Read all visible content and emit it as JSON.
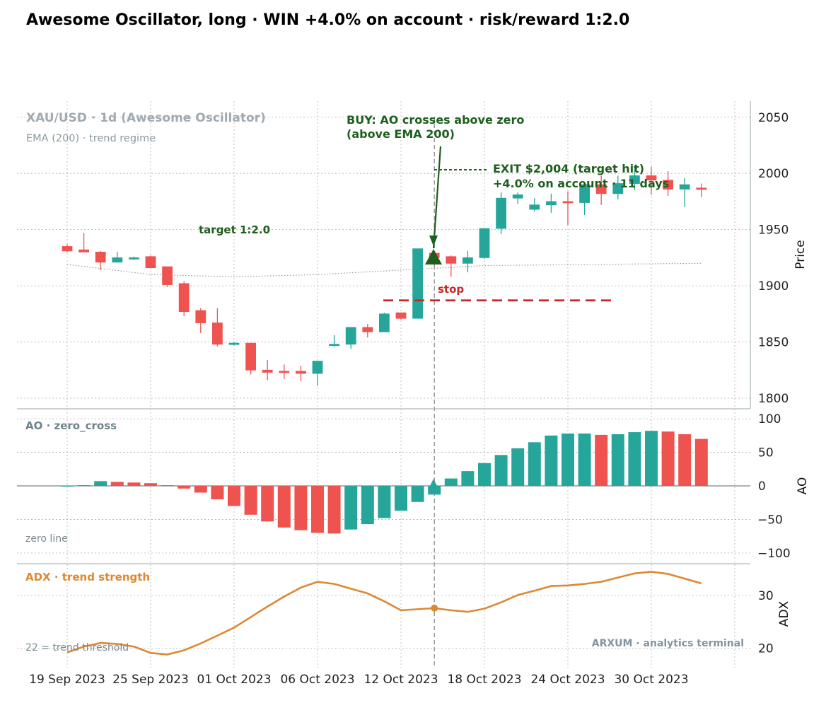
{
  "title": "Awesome Oscillator, long · WIN +4.0% on account · risk/reward 1:2.0",
  "chart_data": {
    "type": "candlestick",
    "x_tick_labels": [
      "19 Sep 2023",
      "25 Sep 2023",
      "01 Oct 2023",
      "06 Oct 2023",
      "12 Oct 2023",
      "18 Oct 2023",
      "24 Oct 2023",
      "30 Oct 2023"
    ],
    "price_panel": {
      "header": "XAU/USD · 1d (Awesome Oscillator)",
      "subheader": "EMA (200) · trend regime",
      "ylabel": "Price",
      "ylim": [
        1790,
        2065
      ],
      "yticks": [
        1800,
        1850,
        1900,
        1950,
        2000,
        2050
      ],
      "candles": [
        {
          "date": "2023-09-19",
          "open": 1935,
          "high": 1937,
          "low": 1930,
          "close": 1931
        },
        {
          "date": "2023-09-20",
          "open": 1932,
          "high": 1947,
          "low": 1930,
          "close": 1930
        },
        {
          "date": "2023-09-21",
          "open": 1930,
          "high": 1931,
          "low": 1914,
          "close": 1921
        },
        {
          "date": "2023-09-22",
          "open": 1921,
          "high": 1930,
          "low": 1921,
          "close": 1925
        },
        {
          "date": "2023-09-23",
          "open": 1924,
          "high": 1926,
          "low": 1923,
          "close": 1925
        },
        {
          "date": "2023-09-24",
          "open": 1926,
          "high": 1927,
          "low": 1916,
          "close": 1916
        },
        {
          "date": "2023-09-25",
          "open": 1917,
          "high": 1917,
          "low": 1899,
          "close": 1901
        },
        {
          "date": "2023-09-26",
          "open": 1902,
          "high": 1904,
          "low": 1873,
          "close": 1877
        },
        {
          "date": "2023-09-27",
          "open": 1878,
          "high": 1880,
          "low": 1858,
          "close": 1867
        },
        {
          "date": "2023-09-28",
          "open": 1867,
          "high": 1880,
          "low": 1846,
          "close": 1848
        },
        {
          "date": "2023-09-29",
          "open": 1848,
          "high": 1850,
          "low": 1847,
          "close": 1849
        },
        {
          "date": "2023-09-30",
          "open": 1849,
          "high": 1849,
          "low": 1821,
          "close": 1825
        },
        {
          "date": "2023-10-01",
          "open": 1825,
          "high": 1834,
          "low": 1816,
          "close": 1823
        },
        {
          "date": "2023-10-02",
          "open": 1824,
          "high": 1830,
          "low": 1817,
          "close": 1823
        },
        {
          "date": "2023-10-03",
          "open": 1824,
          "high": 1829,
          "low": 1815,
          "close": 1822
        },
        {
          "date": "2023-10-04",
          "open": 1822,
          "high": 1833,
          "low": 1811,
          "close": 1833
        },
        {
          "date": "2023-10-05",
          "open": 1847,
          "high": 1856,
          "low": 1846,
          "close": 1848
        },
        {
          "date": "2023-10-06",
          "open": 1848,
          "high": 1863,
          "low": 1844,
          "close": 1863
        },
        {
          "date": "2023-10-07",
          "open": 1863,
          "high": 1866,
          "low": 1854,
          "close": 1859
        },
        {
          "date": "2023-10-08",
          "open": 1859,
          "high": 1876,
          "low": 1859,
          "close": 1875
        },
        {
          "date": "2023-10-09",
          "open": 1876,
          "high": 1876,
          "low": 1870,
          "close": 1871
        },
        {
          "date": "2023-10-10",
          "open": 1871,
          "high": 1933,
          "low": 1871,
          "close": 1933
        },
        {
          "date": "2023-10-11",
          "open": 1929,
          "high": 1931,
          "low": 1918,
          "close": 1925
        },
        {
          "date": "2023-10-12",
          "open": 1926,
          "high": 1927,
          "low": 1908,
          "close": 1920
        },
        {
          "date": "2023-10-13",
          "open": 1920,
          "high": 1931,
          "low": 1912,
          "close": 1925
        },
        {
          "date": "2023-10-14",
          "open": 1925,
          "high": 1951,
          "low": 1924,
          "close": 1951
        },
        {
          "date": "2023-10-15",
          "open": 1951,
          "high": 1983,
          "low": 1946,
          "close": 1978
        },
        {
          "date": "2023-10-16",
          "open": 1978,
          "high": 1983,
          "low": 1973,
          "close": 1981
        },
        {
          "date": "2023-10-17",
          "open": 1968,
          "high": 1978,
          "low": 1966,
          "close": 1972
        },
        {
          "date": "2023-10-18",
          "open": 1972,
          "high": 1982,
          "low": 1965,
          "close": 1975
        },
        {
          "date": "2023-10-19",
          "open": 1975,
          "high": 1984,
          "low": 1954,
          "close": 1974
        },
        {
          "date": "2023-10-20",
          "open": 1974,
          "high": 1990,
          "low": 1963,
          "close": 1990
        },
        {
          "date": "2023-10-21",
          "open": 1990,
          "high": 1998,
          "low": 1972,
          "close": 1982
        },
        {
          "date": "2023-10-22",
          "open": 1982,
          "high": 1998,
          "low": 1977,
          "close": 1991
        },
        {
          "date": "2023-10-23",
          "open": 1991,
          "high": 2005,
          "low": 1985,
          "close": 1998
        },
        {
          "date": "2023-10-24",
          "open": 1998,
          "high": 2006,
          "low": 1981,
          "close": 1994
        },
        {
          "date": "2023-10-25",
          "open": 1994,
          "high": 2002,
          "low": 1980,
          "close": 1986
        },
        {
          "date": "2023-10-26",
          "open": 1986,
          "high": 1996,
          "low": 1970,
          "close": 1990
        },
        {
          "date": "2023-10-27",
          "open": 1987,
          "high": 1991,
          "low": 1979,
          "close": 1986
        }
      ],
      "ema_200": [
        1919,
        1910,
        1908,
        1910,
        1914,
        1918,
        1920
      ],
      "stop_level": 1887,
      "stop_label": "stop",
      "target_label": "target 1:2.0",
      "entry": {
        "date": "2023-10-11",
        "price": 1925,
        "label": "BUY: AO crosses above zero\n(above EMA 200)"
      },
      "exit": {
        "price": 2004,
        "label_line1": "EXIT $2,004 (target hit)",
        "label_line2": "+4.0% on account  ·  11 days"
      }
    },
    "ao_panel": {
      "header": "AO · zero_cross",
      "footnote": "zero line",
      "ylabel": "AO",
      "ylim": [
        -110,
        105
      ],
      "yticks": [
        -100,
        -50,
        0,
        50,
        100
      ],
      "values": [
        0,
        1,
        7,
        6,
        5,
        4,
        1,
        -4,
        -10,
        -20,
        -30,
        -43,
        -53,
        -62,
        -66,
        -70,
        -71,
        -65,
        -57,
        -48,
        -37,
        -24,
        -13,
        11,
        22,
        34,
        46,
        56,
        65,
        75,
        78,
        78,
        76,
        77,
        80,
        82,
        81,
        77,
        70
      ],
      "colors": {
        "rising": "#26a69a",
        "falling": "#ef5350"
      }
    },
    "adx_panel": {
      "header": "ADX · trend strength",
      "footnote": "22 = trend threshold",
      "ylabel": "ADX",
      "ylim": [
        17.5,
        34.5
      ],
      "yticks": [
        20,
        30
      ],
      "values": [
        19.2,
        20.3,
        21.0,
        20.8,
        20.3,
        19.1,
        18.8,
        19.6,
        20.9,
        22.4,
        23.9,
        25.9,
        27.9,
        29.8,
        31.5,
        32.6,
        32.2,
        31.3,
        30.4,
        28.9,
        27.2,
        27.4,
        27.6,
        27.2,
        26.9,
        27.5,
        28.7,
        30.1,
        30.9,
        31.8,
        31.9,
        32.2,
        32.6,
        33.4,
        34.2,
        34.5,
        34.1,
        33.2,
        32.3
      ],
      "color": "#dd8833"
    },
    "watermark": "ARXUM · analytics terminal",
    "colors": {
      "up": "#26a69a",
      "down": "#ef5350",
      "signal": "#1e5e1e",
      "stop": "#c62828",
      "grid": "#b0b0b0"
    }
  }
}
